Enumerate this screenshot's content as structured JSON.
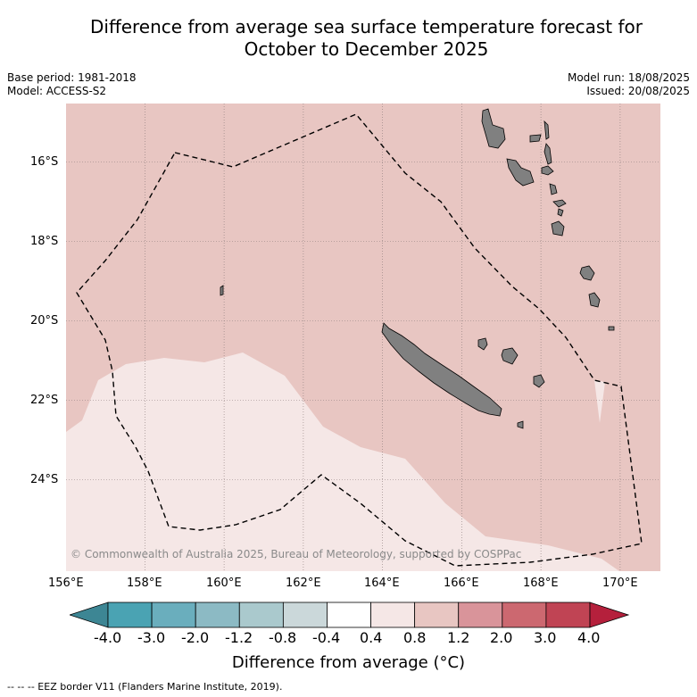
{
  "title": "Difference from average sea surface temperature forecast for",
  "title_line2": "October to December 2025",
  "meta": {
    "base_period": "Base period: 1981-2018",
    "model": "Model: ACCESS-S2",
    "model_run": "Model run: 18/08/2025",
    "issued": "Issued: 20/08/2025"
  },
  "map": {
    "lon_range": [
      156.0,
      171.0
    ],
    "lat_range": [
      -26.2,
      -14.4
    ],
    "y_ticks": [
      "16°S",
      "18°S",
      "20°S",
      "22°S",
      "24°S"
    ],
    "x_ticks": [
      "156°E",
      "158°E",
      "160°E",
      "162°E",
      "164°E",
      "166°E",
      "168°E",
      "170°E"
    ],
    "colors": {
      "warm_0_8_to_1_2": "#e8c6c2",
      "warm_0_4_to_0_8": "#f5e7e6",
      "land": "#808080",
      "grid": "#8a7a7a"
    },
    "copyright": "© Commonwealth of Australia 2025, Bureau of Meteorology, supported by COSPPac"
  },
  "colorbar": {
    "title": "Difference from average (°C)",
    "labels": [
      "-4.0",
      "-3.0",
      "-2.0",
      "-1.2",
      "-0.8",
      "-0.4",
      "0.4",
      "0.8",
      "1.2",
      "2.0",
      "3.0",
      "4.0"
    ],
    "colors": [
      "#4aa3b3",
      "#6aaebd",
      "#8cbac4",
      "#aac9cd",
      "#cbd8da",
      "#ffffff",
      "#f5e7e6",
      "#e8c6c2",
      "#d9949a",
      "#cc6870",
      "#c04454"
    ],
    "low_extend_color": "#3d8694",
    "high_extend_color": "#b5203c"
  },
  "footnote": "--  --  -- EEZ border V11 (Flanders Marine Institute, 2019)."
}
